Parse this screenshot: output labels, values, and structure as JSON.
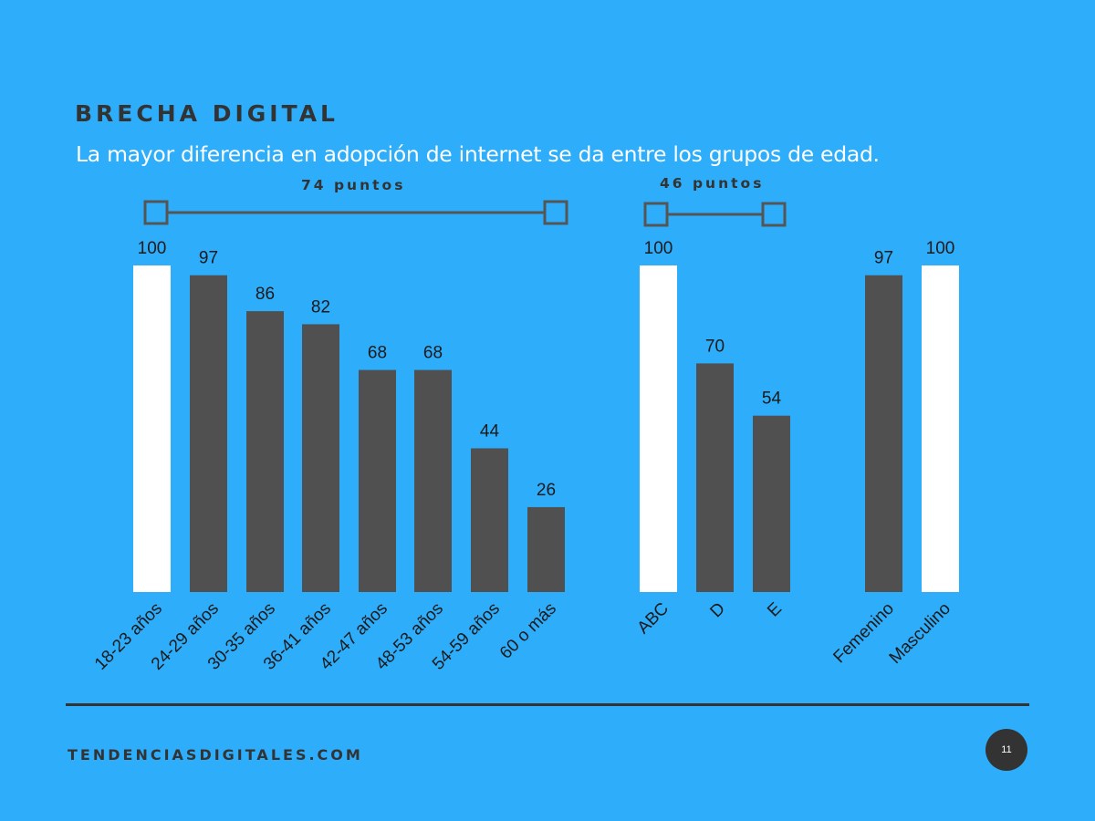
{
  "header": {
    "kicker": "BRECHA DIGITAL",
    "subtitle": "La mayor diferencia en adopción de internet se da entre los grupos de edad."
  },
  "chart_data": [
    {
      "type": "bar",
      "group": "edad",
      "categories": [
        "18-23 años",
        "24-29 años",
        "30-35 años",
        "36-41 años",
        "42-47 años",
        "48-53 años",
        "54-59 años",
        "60 o más"
      ],
      "values": [
        100,
        97,
        86,
        82,
        68,
        68,
        44,
        26
      ],
      "highlight": [
        true,
        false,
        false,
        false,
        false,
        false,
        false,
        false
      ],
      "gap_label": "74 puntos",
      "ylim": [
        0,
        100
      ]
    },
    {
      "type": "bar",
      "group": "nivel",
      "categories": [
        "ABC",
        "D",
        "E"
      ],
      "values": [
        100,
        70,
        54
      ],
      "highlight": [
        true,
        false,
        false
      ],
      "gap_label": "46 puntos",
      "ylim": [
        0,
        100
      ]
    },
    {
      "type": "bar",
      "group": "genero",
      "categories": [
        "Femenino",
        "Masculino"
      ],
      "values": [
        97,
        100
      ],
      "highlight": [
        false,
        true
      ],
      "ylim": [
        0,
        100
      ]
    }
  ],
  "colors": {
    "background": "#2EADFB",
    "bar_dark": "#505050",
    "bar_highlight": "#FFFFFF",
    "text_dark": "#333333"
  },
  "footer": {
    "site": "TENDENCIASDIGITALES.COM",
    "page_number": "11"
  }
}
